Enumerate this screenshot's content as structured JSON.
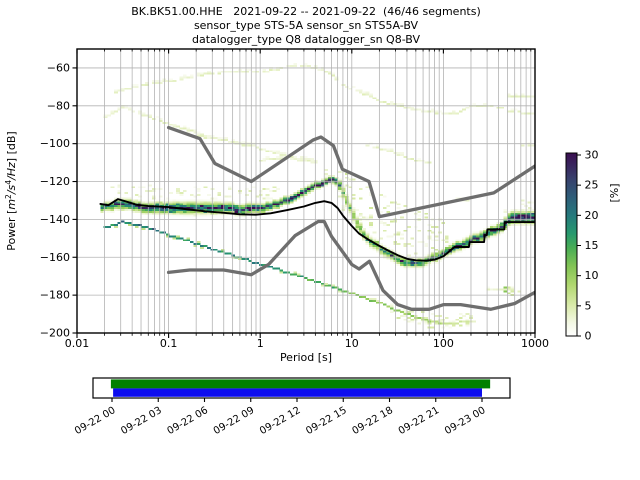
{
  "title": {
    "line1": "BK.BK51.00.HHE   2021-09-22 -- 2021-09-22  (46/46 segments)",
    "line2": "sensor_type STS-5A sensor_sn STS5A-BV",
    "line3": "datalogger_type Q8 datalogger_sn Q8-BV"
  },
  "axes": {
    "xlabel": "Period [s]",
    "ylabel_parts": {
      "u1": "Power [",
      "i1": "m",
      "s1": "2",
      "i2": "/s",
      "s2": "4",
      "i3": "/Hz",
      "u2": "] [dB]"
    },
    "xtick_labels": [
      "0.01",
      "0.1",
      "1",
      "10",
      "100",
      "1000"
    ],
    "xtick_values": [
      0.01,
      0.1,
      1,
      10,
      100,
      1000
    ],
    "ytick_labels": [
      "−60",
      "−80",
      "−100",
      "−120",
      "−140",
      "−160",
      "−180",
      "−200"
    ],
    "ytick_values": [
      -60,
      -80,
      -100,
      -120,
      -140,
      -160,
      -180,
      -200
    ],
    "xlim": [
      0.01,
      1000
    ],
    "ylim": [
      -200,
      -50
    ],
    "xscale": "log",
    "grid": true,
    "grid_color": "#b3b3b3"
  },
  "colorbar": {
    "label": "[%]",
    "tick_labels": [
      "0",
      "5",
      "10",
      "15",
      "20",
      "25",
      "30"
    ],
    "tick_values": [
      0,
      5,
      10,
      15,
      20,
      25,
      30
    ],
    "vmax": 30.33,
    "stops": [
      [
        0,
        "#ffffff"
      ],
      [
        0.07,
        "#f4f8e5"
      ],
      [
        0.17,
        "#d9eaa9"
      ],
      [
        0.28,
        "#b0d76f"
      ],
      [
        0.38,
        "#83c455"
      ],
      [
        0.48,
        "#4aad55"
      ],
      [
        0.56,
        "#27996e"
      ],
      [
        0.66,
        "#26797d"
      ],
      [
        0.76,
        "#2f5d79"
      ],
      [
        0.86,
        "#38406c"
      ],
      [
        1,
        "#3a0e50"
      ]
    ]
  },
  "coverage": {
    "tick_labels": [
      "09-22 00",
      "09-22 03",
      "09-22 06",
      "09-22 09",
      "09-22 12",
      "09-22 15",
      "09-22 18",
      "09-22 21",
      "09-23 00"
    ],
    "green_color": "#008000",
    "blue_color": "#0d0dee",
    "green_span": [
      -0.003,
      1.022
    ],
    "blue_span": [
      0.003,
      1.0
    ]
  },
  "chart_data": {
    "type": "heatmap",
    "description": "ObsPy PPSD probabilistic power spectral density histogram for BK.BK51.00.HHE on 2021-09-22 (46/46 segments); color = probability [%]",
    "x_axis": "Period [s], log scale 0.01 to 1000",
    "y_axis": "Power [m^2/s^4/Hz] [dB], -200 to -50",
    "color_axis": "[%] 0 to 30",
    "period_step_octaves": 0.125,
    "db_bin_width": 1,
    "line_colors": {
      "mode_line": "#000000",
      "noise_models": "#6e6e6e"
    },
    "noise_models": {
      "nhnm": [
        [
          0.1,
          -91.5
        ],
        [
          0.22,
          -97.4
        ],
        [
          0.32,
          -110.5
        ],
        [
          0.8,
          -120
        ],
        [
          3.8,
          -98
        ],
        [
          4.6,
          -96.5
        ],
        [
          6.3,
          -101
        ],
        [
          7.9,
          -113.5
        ],
        [
          15.4,
          -120
        ],
        [
          20,
          -138.5
        ],
        [
          354.8,
          -126
        ],
        [
          1000,
          -111.8
        ]
      ],
      "nlnm": [
        [
          0.1,
          -168
        ],
        [
          0.17,
          -166.7
        ],
        [
          0.4,
          -166.7
        ],
        [
          0.8,
          -169.2
        ],
        [
          1.24,
          -163.7
        ],
        [
          2.4,
          -148.6
        ],
        [
          4.3,
          -141.1
        ],
        [
          5,
          -141.1
        ],
        [
          6,
          -149
        ],
        [
          10,
          -163.8
        ],
        [
          12,
          -166.2
        ],
        [
          15.6,
          -162.1
        ],
        [
          21.9,
          -177.5
        ],
        [
          31.6,
          -185
        ],
        [
          45,
          -187.5
        ],
        [
          70,
          -187.5
        ],
        [
          101,
          -185
        ],
        [
          154,
          -185
        ],
        [
          328,
          -187.5
        ],
        [
          600,
          -184.4
        ],
        [
          1000,
          -178.5
        ]
      ]
    },
    "mode_line": [
      [
        0.018,
        -131.8
      ],
      [
        0.022,
        -132.5
      ],
      [
        0.028,
        -129.3
      ],
      [
        0.034,
        -130.5
      ],
      [
        0.045,
        -132.3
      ],
      [
        0.06,
        -133
      ],
      [
        0.1,
        -133.5
      ],
      [
        0.15,
        -134.5
      ],
      [
        0.25,
        -135.7
      ],
      [
        0.4,
        -136.5
      ],
      [
        0.6,
        -137.3
      ],
      [
        0.9,
        -137.5
      ],
      [
        1.3,
        -136.8
      ],
      [
        2,
        -135
      ],
      [
        3,
        -133.2
      ],
      [
        4,
        -131.3
      ],
      [
        5,
        -130.4
      ],
      [
        6,
        -131.3
      ],
      [
        7,
        -134
      ],
      [
        8,
        -138
      ],
      [
        10,
        -143.5
      ],
      [
        12,
        -147.5
      ],
      [
        15,
        -150.5
      ],
      [
        20,
        -154
      ],
      [
        25,
        -156.5
      ],
      [
        32,
        -159
      ],
      [
        40,
        -160.8
      ],
      [
        50,
        -161.6
      ],
      [
        65,
        -161.8
      ],
      [
        80,
        -161.3
      ],
      [
        100,
        -159.5
      ],
      [
        115,
        -157
      ],
      [
        132,
        -154.6
      ],
      [
        190,
        -154.6
      ],
      [
        193,
        -152
      ],
      [
        278,
        -152
      ],
      [
        282,
        -148.3
      ],
      [
        298,
        -148.3
      ],
      [
        302,
        -145.3
      ],
      [
        462,
        -145.3
      ],
      [
        468,
        -141.4
      ],
      [
        1000,
        -141.4
      ]
    ],
    "histogram_ridge": [
      [
        0.018,
        -133.8,
        3.2,
        22
      ],
      [
        0.03,
        -131.5,
        4,
        25
      ],
      [
        0.05,
        -133.8,
        4,
        26
      ],
      [
        0.1,
        -134.2,
        4.5,
        28
      ],
      [
        0.2,
        -133.8,
        5,
        22
      ],
      [
        0.35,
        -134.2,
        4.5,
        24
      ],
      [
        0.6,
        -134.6,
        4,
        26
      ],
      [
        1,
        -133.8,
        3.5,
        28
      ],
      [
        1.5,
        -131.8,
        3,
        29
      ],
      [
        2.2,
        -128.6,
        3,
        30
      ],
      [
        3.2,
        -124.6,
        2.8,
        30
      ],
      [
        4.5,
        -120.8,
        2.6,
        30
      ],
      [
        5.5,
        -118.9,
        2.6,
        30
      ],
      [
        6.5,
        -119.6,
        3,
        28
      ],
      [
        7.5,
        -124,
        4.5,
        14
      ],
      [
        8.5,
        -130,
        5.5,
        10
      ],
      [
        10,
        -138,
        5.5,
        12
      ],
      [
        12,
        -145.5,
        4.5,
        14
      ],
      [
        15,
        -151,
        4,
        15
      ],
      [
        20,
        -155.5,
        4,
        16
      ],
      [
        27,
        -159.5,
        3.8,
        18
      ],
      [
        35,
        -162.3,
        3.5,
        22
      ],
      [
        45,
        -163.3,
        3.5,
        20
      ],
      [
        60,
        -162.4,
        3.5,
        20
      ],
      [
        80,
        -159.6,
        3.5,
        22
      ],
      [
        100,
        -157.5,
        3.5,
        22
      ],
      [
        130,
        -154.8,
        3.6,
        24
      ],
      [
        160,
        -152.8,
        3.6,
        24
      ],
      [
        200,
        -150.8,
        3.6,
        25
      ],
      [
        260,
        -148.8,
        3.6,
        25
      ],
      [
        320,
        -146.4,
        3.6,
        26
      ],
      [
        420,
        -144,
        3.8,
        27
      ],
      [
        520,
        -139.5,
        5,
        28
      ],
      [
        700,
        -138.8,
        5,
        28
      ],
      [
        1000,
        -138.8,
        5,
        28
      ]
    ],
    "diagonal_branch": [
      [
        0.019,
        -144,
        20
      ],
      [
        0.024,
        -143.2,
        16
      ],
      [
        0.03,
        -141.4,
        22
      ],
      [
        0.04,
        -142.6,
        20
      ],
      [
        0.06,
        -144.8,
        20
      ],
      [
        0.1,
        -148.4,
        20
      ],
      [
        0.2,
        -153,
        18
      ],
      [
        0.4,
        -157.8,
        18
      ],
      [
        0.8,
        -162.4,
        18
      ],
      [
        1.5,
        -166.4,
        17
      ],
      [
        3,
        -171,
        15
      ],
      [
        6,
        -175.8,
        14
      ],
      [
        10,
        -179.4,
        12
      ],
      [
        20,
        -184.4,
        11
      ],
      [
        30,
        -188,
        10
      ],
      [
        50,
        -192,
        9
      ],
      [
        80,
        -194.4,
        8
      ],
      [
        120,
        -195.2,
        6
      ],
      [
        180,
        -193.6,
        5
      ]
    ],
    "pale_traces": [
      [
        [
          0.024,
          -73.5
        ],
        [
          0.035,
          -70.8
        ],
        [
          0.05,
          -68.8
        ],
        [
          0.1,
          -67
        ],
        [
          0.2,
          -64
        ],
        [
          0.3,
          -62.7
        ],
        [
          0.5,
          -62
        ],
        [
          0.8,
          -62.3
        ],
        [
          1.2,
          -61.6
        ],
        [
          2.2,
          -58.6
        ],
        [
          3.5,
          -59.6
        ],
        [
          5.4,
          -62.3
        ],
        [
          8.2,
          -69.5
        ],
        [
          12,
          -72.8
        ],
        [
          19,
          -77.4
        ],
        [
          29,
          -79.6
        ],
        [
          43,
          -81.7
        ],
        [
          66,
          -83.4
        ],
        [
          130,
          -84
        ],
        [
          195,
          -80.2
        ],
        [
          440,
          -80.6
        ]
      ],
      [
        [
          455,
          -74.6
        ],
        [
          1000,
          -74.8
        ]
      ],
      [
        [
          470,
          -83.2
        ],
        [
          1000,
          -83.8
        ]
      ],
      [
        [
          0.019,
          -86
        ],
        [
          0.03,
          -80.6
        ],
        [
          0.05,
          -84.4
        ],
        [
          0.1,
          -90
        ],
        [
          0.2,
          -94.4
        ],
        [
          0.4,
          -98.4
        ],
        [
          0.9,
          -102.4
        ],
        [
          1.8,
          -106.4
        ],
        [
          3.8,
          -109
        ]
      ],
      [
        [
          0.9,
          -108.6
        ],
        [
          2.2,
          -108.2
        ],
        [
          4.2,
          -110
        ]
      ],
      [
        [
          0.15,
          -95.2
        ],
        [
          0.45,
          -98.6
        ],
        [
          0.85,
          -100.8
        ]
      ],
      [
        [
          14,
          -100.6
        ],
        [
          26,
          -104.2
        ],
        [
          45,
          -108.4
        ],
        [
          70,
          -110.4
        ]
      ],
      [
        [
          700,
          -100.6
        ],
        [
          1000,
          -101.2
        ]
      ],
      [
        [
          135,
          -129.6
        ],
        [
          190,
          -129.6
        ]
      ],
      [
        [
          430,
          -136.4
        ],
        [
          720,
          -137.2
        ]
      ],
      [
        [
          250,
          -176.4
        ],
        [
          700,
          -177.6
        ]
      ]
    ],
    "scatter_clouds": [
      {
        "t": [
          6.8,
          112
        ],
        "top": [
          [
            6.8,
            -113
          ],
          [
            10,
            -119
          ],
          [
            20,
            -127
          ],
          [
            40,
            -134
          ],
          [
            70,
            -138
          ],
          [
            112,
            -141
          ]
        ],
        "bottom": [
          [
            6.8,
            -131
          ],
          [
            10,
            -142
          ],
          [
            20,
            -153
          ],
          [
            40,
            -159.5
          ],
          [
            70,
            -160.5
          ],
          [
            112,
            -156.5
          ]
        ],
        "density": 0.18,
        "pct": [
          1,
          6
        ]
      },
      {
        "t": [
          0.02,
          1.6
        ],
        "top": [
          [
            0.02,
            -122
          ],
          [
            1.6,
            -123.5
          ]
        ],
        "bottom": [
          [
            0.02,
            -128.3
          ],
          [
            1.6,
            -129.5
          ]
        ],
        "density": 0.22,
        "pct": [
          1,
          5
        ]
      },
      {
        "t": [
          4,
          8.6
        ],
        "top": [
          [
            4,
            -113
          ],
          [
            8.6,
            -114.5
          ]
        ],
        "bottom": [
          [
            4,
            -117.5
          ],
          [
            8.6,
            -118.5
          ]
        ],
        "density": 0.15,
        "pct": [
          1,
          4
        ]
      },
      {
        "t": [
          26,
          210
        ],
        "top": [
          [
            26,
            -183
          ],
          [
            50,
            -189
          ],
          [
            100,
            -191.5
          ],
          [
            210,
            -189.5
          ]
        ],
        "bottom": [
          [
            26,
            -190
          ],
          [
            50,
            -196
          ],
          [
            100,
            -197.5
          ],
          [
            210,
            -195.5
          ]
        ],
        "density": 0.3,
        "pct": [
          1,
          6
        ]
      },
      {
        "t": [
          420,
          580
        ],
        "top": [
          [
            420,
            -176.2
          ],
          [
            580,
            -176.2
          ]
        ],
        "bottom": [
          [
            420,
            -179.8
          ],
          [
            580,
            -179.8
          ]
        ],
        "density": 0.55,
        "pct": [
          3,
          12
        ]
      },
      {
        "t": [
          500,
          1000
        ],
        "top": [
          [
            500,
            -130.5
          ],
          [
            1000,
            -130.5
          ]
        ],
        "bottom": [
          [
            500,
            -136
          ],
          [
            1000,
            -136
          ]
        ],
        "density": 0.12,
        "pct": [
          1,
          4
        ]
      }
    ]
  }
}
